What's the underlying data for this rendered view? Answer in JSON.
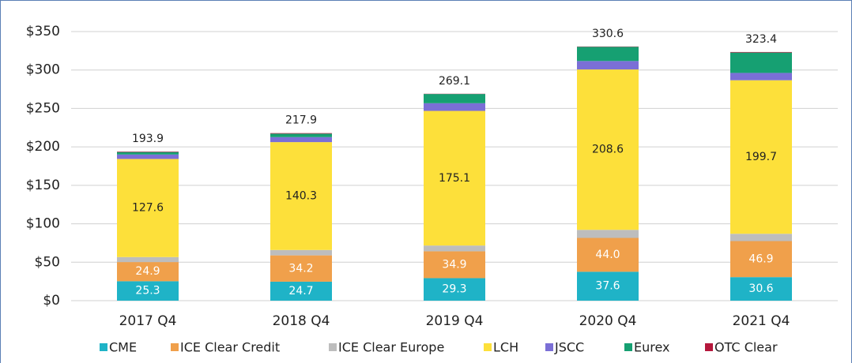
{
  "chart_data": {
    "type": "stacked_bar",
    "categories": [
      "2017 Q4",
      "2018 Q4",
      "2019 Q4",
      "2020 Q4",
      "2021 Q4"
    ],
    "series": [
      {
        "name": "CME",
        "color": "#1fb3c7",
        "values": [
          25.3,
          24.7,
          29.3,
          37.6,
          30.6
        ],
        "value_labels": [
          "25.3",
          "24.7",
          "29.3",
          "37.6",
          "30.6"
        ]
      },
      {
        "name": "ICE Clear Credit",
        "color": "#f0a04b",
        "values": [
          24.9,
          34.2,
          34.9,
          44.0,
          46.9
        ],
        "value_labels": [
          "24.9",
          "34.2",
          "34.9",
          "44.0",
          "46.9"
        ]
      },
      {
        "name": "ICE Clear Europe",
        "color": "#bdbdbd",
        "values": [
          6.5,
          7,
          7.5,
          10.5,
          9.5
        ]
      },
      {
        "name": "LCH",
        "color": "#fde03a",
        "values": [
          127.6,
          140.3,
          175.1,
          208.6,
          199.7
        ],
        "value_labels": [
          "127.6",
          "140.3",
          "175.1",
          "208.6",
          "199.7"
        ]
      },
      {
        "name": "JSCC",
        "color": "#7b6fd6",
        "values": [
          5.8,
          6.5,
          10,
          11,
          9.5
        ]
      },
      {
        "name": "Eurex",
        "color": "#16a072",
        "values": [
          3.2,
          4.5,
          12,
          18.5,
          26.5
        ]
      },
      {
        "name": "OTC Clear",
        "color": "#b5173c",
        "values": [
          0.6,
          0.7,
          0.3,
          0.4,
          0.7
        ]
      }
    ],
    "totals": [
      193.9,
      217.9,
      269.1,
      330.6,
      323.4
    ],
    "ylim": [
      0,
      350
    ],
    "yticks": [
      {
        "value": 0,
        "label": "$0"
      },
      {
        "value": 50,
        "label": "$50"
      },
      {
        "value": 100,
        "label": "$100"
      },
      {
        "value": 150,
        "label": "$150"
      },
      {
        "value": 200,
        "label": "$200"
      },
      {
        "value": 250,
        "label": "$250"
      },
      {
        "value": 300,
        "label": "$300"
      },
      {
        "value": 350,
        "label": "$350"
      }
    ],
    "grid": true
  }
}
